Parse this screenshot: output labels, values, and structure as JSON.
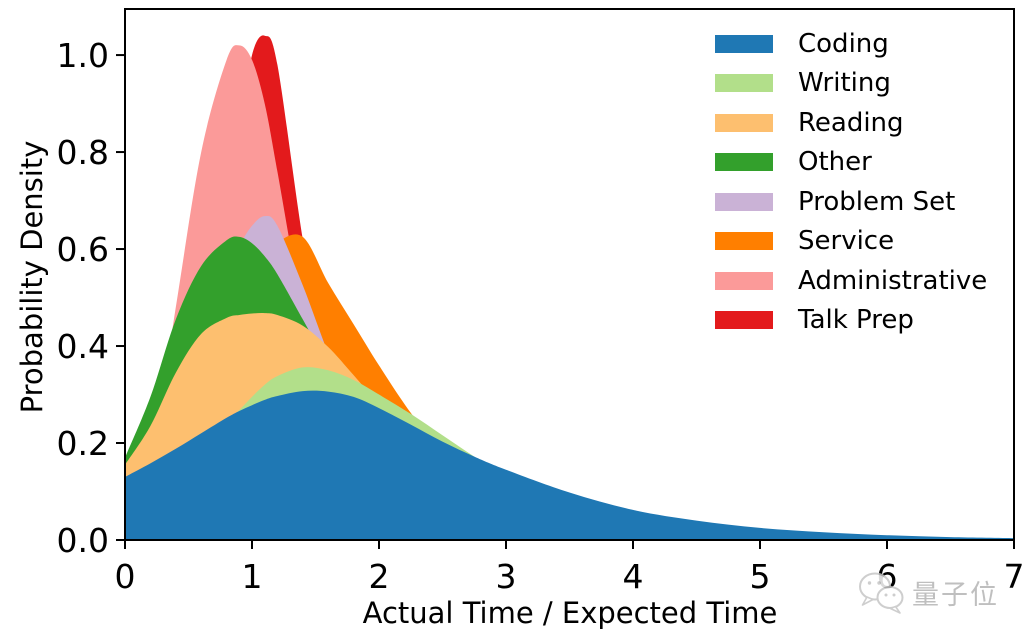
{
  "chart_data": {
    "type": "area",
    "title": "",
    "xlabel": "Actual Time / Expected Time",
    "ylabel": "Probability Density",
    "xlim": [
      0,
      7
    ],
    "ylim": [
      0,
      1.095
    ],
    "grid": false,
    "legend_position": "upper right",
    "x_ticks": [
      {
        "v": 0,
        "label": "0"
      },
      {
        "v": 1,
        "label": "1"
      },
      {
        "v": 2,
        "label": "2"
      },
      {
        "v": 3,
        "label": "3"
      },
      {
        "v": 4,
        "label": "4"
      },
      {
        "v": 5,
        "label": "5"
      },
      {
        "v": 6,
        "label": "6"
      },
      {
        "v": 7,
        "label": "7"
      }
    ],
    "y_ticks": [
      {
        "v": 0.0,
        "label": "0.0"
      },
      {
        "v": 0.2,
        "label": "0.2"
      },
      {
        "v": 0.4,
        "label": "0.4"
      },
      {
        "v": 0.6,
        "label": "0.6"
      },
      {
        "v": 0.8,
        "label": "0.8"
      },
      {
        "v": 1.0,
        "label": "1.0"
      }
    ],
    "x": [
      0,
      0.2,
      0.4,
      0.6,
      0.8,
      0.9,
      1.0,
      1.1,
      1.2,
      1.4,
      1.6,
      1.8,
      2.0,
      2.25,
      2.5,
      2.75,
      3.0,
      3.5,
      4.0,
      4.5,
      5.0,
      5.5,
      6.0,
      6.5,
      7.0
    ],
    "series": [
      {
        "name": "Coding",
        "color": "#1f78b4",
        "values": [
          0.13,
          0.158,
          0.188,
          0.22,
          0.252,
          0.266,
          0.278,
          0.289,
          0.297,
          0.307,
          0.306,
          0.295,
          0.272,
          0.238,
          0.203,
          0.172,
          0.145,
          0.098,
          0.062,
          0.04,
          0.025,
          0.016,
          0.01,
          0.006,
          0.004
        ]
      },
      {
        "name": "Writing",
        "color": "#b2df8a",
        "values": [
          0.09,
          0.118,
          0.155,
          0.2,
          0.245,
          0.268,
          0.295,
          0.32,
          0.338,
          0.356,
          0.35,
          0.33,
          0.3,
          0.26,
          0.216,
          0.172,
          0.133,
          0.07,
          0.033,
          0.015,
          0.006,
          0.002,
          0.001,
          0.0,
          0.0
        ]
      },
      {
        "name": "Reading",
        "color": "#fdbf6f",
        "values": [
          0.155,
          0.235,
          0.345,
          0.425,
          0.458,
          0.464,
          0.467,
          0.468,
          0.464,
          0.442,
          0.398,
          0.34,
          0.28,
          0.212,
          0.155,
          0.11,
          0.076,
          0.034,
          0.014,
          0.006,
          0.002,
          0.0,
          0.0,
          0.0,
          0.0
        ]
      },
      {
        "name": "Other",
        "color": "#33a02c",
        "values": [
          0.17,
          0.295,
          0.455,
          0.565,
          0.618,
          0.625,
          0.612,
          0.585,
          0.548,
          0.455,
          0.36,
          0.272,
          0.198,
          0.128,
          0.08,
          0.048,
          0.028,
          0.009,
          0.003,
          0.0,
          0.0,
          0.0,
          0.0,
          0.0,
          0.0
        ]
      },
      {
        "name": "Problem Set",
        "color": "#cab2d6",
        "values": [
          0.04,
          0.1,
          0.21,
          0.37,
          0.54,
          0.605,
          0.648,
          0.668,
          0.648,
          0.525,
          0.385,
          0.262,
          0.168,
          0.092,
          0.048,
          0.024,
          0.012,
          0.003,
          0.0,
          0.0,
          0.0,
          0.0,
          0.0,
          0.0,
          0.0
        ]
      },
      {
        "name": "Service",
        "color": "#ff7f00",
        "values": [
          0.01,
          0.03,
          0.07,
          0.15,
          0.295,
          0.38,
          0.47,
          0.56,
          0.612,
          0.625,
          0.53,
          0.445,
          0.36,
          0.262,
          0.18,
          0.118,
          0.075,
          0.028,
          0.01,
          0.003,
          0.001,
          0.0,
          0.0,
          0.0,
          0.0
        ]
      },
      {
        "name": "Administrative",
        "color": "#fb9a99",
        "values": [
          0.03,
          0.15,
          0.48,
          0.8,
          0.99,
          1.02,
          0.99,
          0.9,
          0.76,
          0.47,
          0.255,
          0.125,
          0.055,
          0.02,
          0.007,
          0.002,
          0.0,
          0.0,
          0.0,
          0.0,
          0.0,
          0.0,
          0.0,
          0.0,
          0.0
        ]
      },
      {
        "name": "Talk Prep",
        "color": "#e31a1c",
        "values": [
          0.002,
          0.02,
          0.08,
          0.25,
          0.62,
          0.84,
          1.0,
          1.04,
          0.98,
          0.62,
          0.33,
          0.16,
          0.07,
          0.022,
          0.007,
          0.002,
          0.0,
          0.0,
          0.0,
          0.0,
          0.0,
          0.0,
          0.0,
          0.0,
          0.0
        ]
      }
    ]
  },
  "watermark": {
    "text": "量子位",
    "icon": "wechat-icon"
  }
}
